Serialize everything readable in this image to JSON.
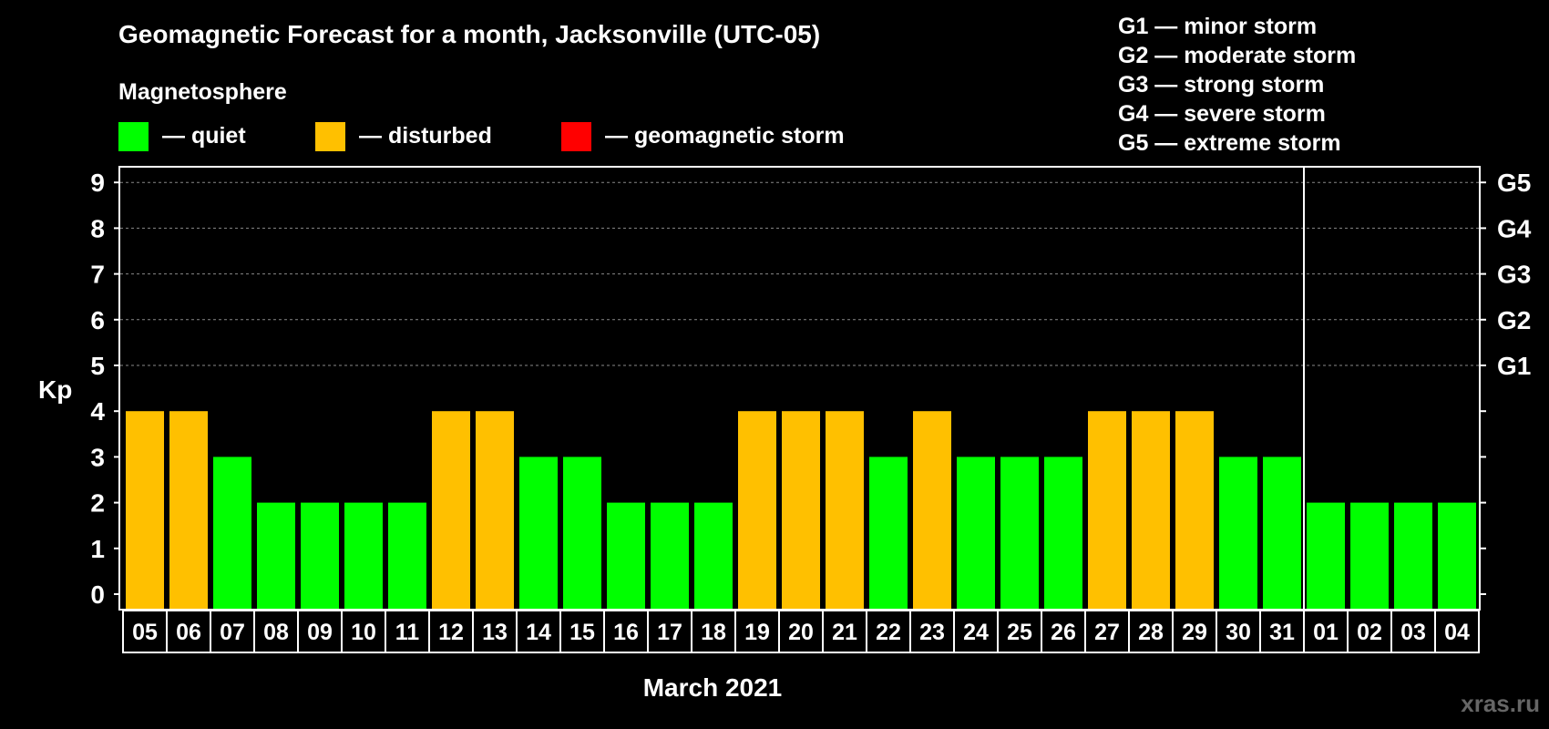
{
  "chart_data": {
    "type": "bar",
    "title": "Geomagnetic Forecast for a month, Jacksonville (UTC-05)",
    "subtitle": "Magnetosphere",
    "xlabel": "March 2021",
    "ylabel": "Kp",
    "ylim": [
      0,
      9
    ],
    "yticks": [
      "0",
      "1",
      "2",
      "3",
      "4",
      "5",
      "6",
      "7",
      "8",
      "9"
    ],
    "g_levels": [
      {
        "kp": 5,
        "label": "G1"
      },
      {
        "kp": 6,
        "label": "G2"
      },
      {
        "kp": 7,
        "label": "G3"
      },
      {
        "kp": 8,
        "label": "G4"
      },
      {
        "kp": 9,
        "label": "G5"
      }
    ],
    "categories": [
      "05",
      "06",
      "07",
      "08",
      "09",
      "10",
      "11",
      "12",
      "13",
      "14",
      "15",
      "16",
      "17",
      "18",
      "19",
      "20",
      "21",
      "22",
      "23",
      "24",
      "25",
      "26",
      "27",
      "28",
      "29",
      "30",
      "31",
      "01",
      "02",
      "03",
      "04"
    ],
    "values": [
      4,
      4,
      3,
      2,
      2,
      2,
      2,
      4,
      4,
      3,
      3,
      2,
      2,
      2,
      4,
      4,
      4,
      3,
      4,
      3,
      3,
      3,
      4,
      4,
      4,
      3,
      3,
      2,
      2,
      2,
      2
    ],
    "month_break_after": "31",
    "legend": [
      {
        "label": "— quiet",
        "color": "#00ff00"
      },
      {
        "label": "— disturbed",
        "color": "#ffc000"
      },
      {
        "label": "— geomagnetic storm",
        "color": "#ff0000"
      }
    ],
    "storm_scale": [
      "G1 — minor storm",
      "G2 — moderate storm",
      "G3 — strong storm",
      "G4 — severe storm",
      "G5 — extreme storm"
    ]
  },
  "colors": {
    "quiet": "#00ff00",
    "disturbed": "#ffc000",
    "storm": "#ff0000"
  },
  "watermark": "xras.ru"
}
